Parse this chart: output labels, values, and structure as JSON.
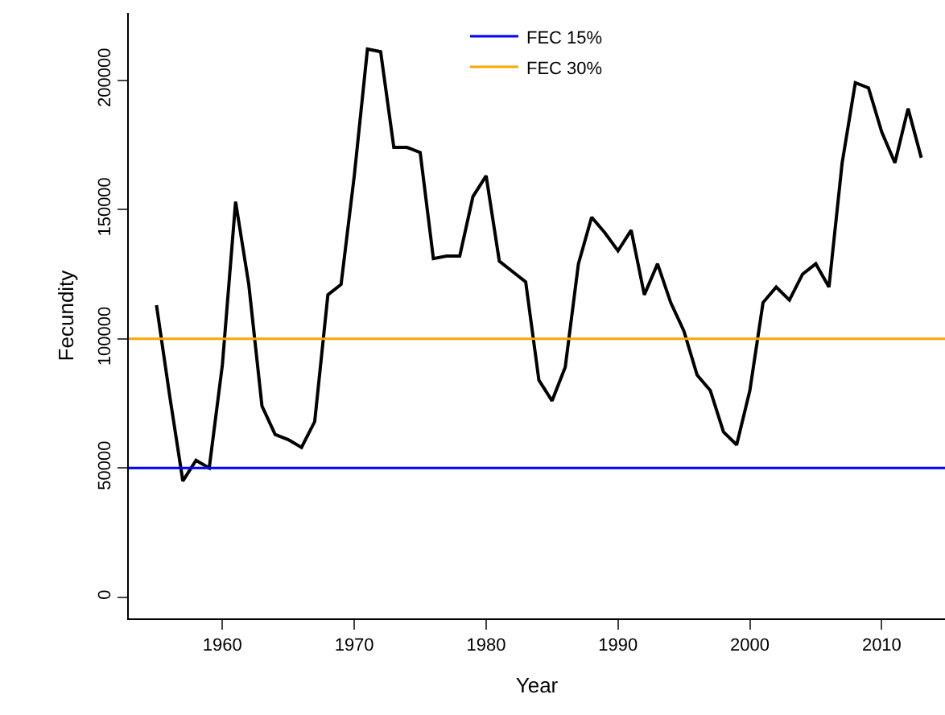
{
  "chart_data": {
    "type": "line",
    "xlabel": "Year",
    "ylabel": "Fecundity",
    "x": [
      1955,
      1956,
      1957,
      1958,
      1959,
      1960,
      1961,
      1962,
      1963,
      1964,
      1965,
      1966,
      1967,
      1968,
      1969,
      1970,
      1971,
      1972,
      1973,
      1974,
      1975,
      1976,
      1977,
      1978,
      1979,
      1980,
      1981,
      1982,
      1983,
      1984,
      1985,
      1986,
      1987,
      1988,
      1989,
      1990,
      1991,
      1992,
      1993,
      1994,
      1995,
      1996,
      1997,
      1998,
      1999,
      2000,
      2001,
      2002,
      2003,
      2004,
      2005,
      2006,
      2007,
      2008,
      2009,
      2010,
      2011,
      2012,
      2013
    ],
    "series": [
      {
        "color": "#000000",
        "values": [
          113000,
          78000,
          45000,
          53000,
          50000,
          90000,
          153000,
          121000,
          74000,
          63000,
          61000,
          58000,
          68000,
          117000,
          121000,
          163000,
          212000,
          211000,
          174000,
          174000,
          172000,
          131000,
          132000,
          132000,
          155000,
          163000,
          130000,
          126000,
          122000,
          84000,
          76000,
          89000,
          129000,
          147000,
          141000,
          134000,
          142000,
          117000,
          129000,
          114000,
          103000,
          86000,
          80000,
          64000,
          59000,
          80000,
          114000,
          120000,
          115000,
          125000,
          129000,
          120000,
          168000,
          199000,
          197000,
          180000,
          168000,
          189000,
          170000
        ]
      }
    ],
    "xlim": [
      1952.9,
      2014.8
    ],
    "xticks": [
      1960,
      1970,
      1980,
      1990,
      2000,
      2010
    ],
    "ylim": [
      -8100,
      226000
    ],
    "yticks": [
      0,
      50000,
      100000,
      150000,
      200000
    ],
    "ref_lines": [
      {
        "axis": "y",
        "value": 50000,
        "label": "FEC 15%",
        "color": "#0000ff"
      },
      {
        "axis": "y",
        "value": 100000,
        "label": "FEC 30%",
        "color": "#ffa500"
      }
    ],
    "legend": "top",
    "grid": false,
    "marker": "none",
    "line_style": "solid"
  }
}
